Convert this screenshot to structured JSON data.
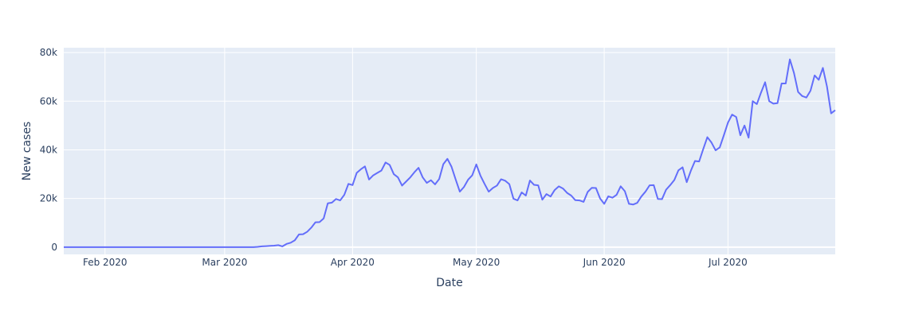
{
  "chart_data": {
    "type": "line",
    "title": "",
    "xlabel": "Date",
    "ylabel": "New cases",
    "x_range": [
      "2020-01-22",
      "2020-07-27"
    ],
    "ylim": [
      -3000,
      82000
    ],
    "y_ticks": [
      {
        "value": 0,
        "label": "0"
      },
      {
        "value": 20000,
        "label": "20k"
      },
      {
        "value": 40000,
        "label": "40k"
      },
      {
        "value": 60000,
        "label": "60k"
      },
      {
        "value": 80000,
        "label": "80k"
      }
    ],
    "x_ticks": [
      {
        "value": "2020-02-01",
        "label": "Feb 2020"
      },
      {
        "value": "2020-03-01",
        "label": "Mar 2020"
      },
      {
        "value": "2020-04-01",
        "label": "Apr 2020"
      },
      {
        "value": "2020-05-01",
        "label": "May 2020"
      },
      {
        "value": "2020-06-01",
        "label": "Jun 2020"
      },
      {
        "value": "2020-07-01",
        "label": "Jul 2020"
      }
    ],
    "grid": true,
    "colors": {
      "plot_bg": "#e5ecf6",
      "grid": "#ffffff",
      "line": "#636efa",
      "text": "#2a3f5f"
    },
    "series": [
      {
        "points": [
          [
            "2020-01-22",
            0
          ],
          [
            "2020-02-01",
            0
          ],
          [
            "2020-02-15",
            0
          ],
          [
            "2020-03-01",
            0
          ],
          [
            "2020-03-08",
            0
          ],
          [
            "2020-03-09",
            100
          ],
          [
            "2020-03-10",
            300
          ],
          [
            "2020-03-11",
            400
          ],
          [
            "2020-03-12",
            500
          ],
          [
            "2020-03-13",
            600
          ],
          [
            "2020-03-14",
            800
          ],
          [
            "2020-03-15",
            300
          ],
          [
            "2020-03-16",
            1300
          ],
          [
            "2020-03-17",
            1800
          ],
          [
            "2020-03-18",
            2800
          ],
          [
            "2020-03-19",
            5200
          ],
          [
            "2020-03-20",
            5300
          ],
          [
            "2020-03-21",
            6300
          ],
          [
            "2020-03-22",
            8000
          ],
          [
            "2020-03-23",
            10200
          ],
          [
            "2020-03-24",
            10300
          ],
          [
            "2020-03-25",
            11800
          ],
          [
            "2020-03-26",
            18000
          ],
          [
            "2020-03-27",
            18300
          ],
          [
            "2020-03-28",
            19800
          ],
          [
            "2020-03-29",
            19200
          ],
          [
            "2020-03-30",
            21500
          ],
          [
            "2020-03-31",
            26000
          ],
          [
            "2020-04-01",
            25500
          ],
          [
            "2020-04-02",
            30500
          ],
          [
            "2020-04-03",
            32000
          ],
          [
            "2020-04-04",
            33200
          ],
          [
            "2020-04-05",
            27800
          ],
          [
            "2020-04-06",
            29500
          ],
          [
            "2020-04-07",
            30500
          ],
          [
            "2020-04-08",
            31500
          ],
          [
            "2020-04-09",
            34800
          ],
          [
            "2020-04-10",
            33800
          ],
          [
            "2020-04-11",
            30000
          ],
          [
            "2020-04-12",
            28700
          ],
          [
            "2020-04-13",
            25300
          ],
          [
            "2020-04-14",
            27000
          ],
          [
            "2020-04-15",
            28700
          ],
          [
            "2020-04-16",
            30800
          ],
          [
            "2020-04-17",
            32600
          ],
          [
            "2020-04-18",
            28700
          ],
          [
            "2020-04-19",
            26400
          ],
          [
            "2020-04-20",
            27500
          ],
          [
            "2020-04-21",
            25800
          ],
          [
            "2020-04-22",
            28000
          ],
          [
            "2020-04-23",
            34100
          ],
          [
            "2020-04-24",
            36300
          ],
          [
            "2020-04-25",
            33000
          ],
          [
            "2020-04-26",
            27800
          ],
          [
            "2020-04-27",
            22800
          ],
          [
            "2020-04-28",
            24700
          ],
          [
            "2020-04-29",
            27700
          ],
          [
            "2020-04-30",
            29500
          ],
          [
            "2020-05-01",
            34000
          ],
          [
            "2020-05-02",
            29400
          ],
          [
            "2020-05-03",
            26000
          ],
          [
            "2020-05-04",
            22800
          ],
          [
            "2020-05-05",
            24300
          ],
          [
            "2020-05-06",
            25300
          ],
          [
            "2020-05-07",
            27900
          ],
          [
            "2020-05-08",
            27300
          ],
          [
            "2020-05-09",
            25900
          ],
          [
            "2020-05-10",
            19900
          ],
          [
            "2020-05-11",
            19200
          ],
          [
            "2020-05-12",
            22500
          ],
          [
            "2020-05-13",
            21200
          ],
          [
            "2020-05-14",
            27400
          ],
          [
            "2020-05-15",
            25600
          ],
          [
            "2020-05-16",
            25400
          ],
          [
            "2020-05-17",
            19500
          ],
          [
            "2020-05-18",
            21800
          ],
          [
            "2020-05-19",
            20800
          ],
          [
            "2020-05-20",
            23500
          ],
          [
            "2020-05-21",
            25000
          ],
          [
            "2020-05-22",
            24100
          ],
          [
            "2020-05-23",
            22300
          ],
          [
            "2020-05-24",
            21200
          ],
          [
            "2020-05-25",
            19300
          ],
          [
            "2020-05-26",
            19200
          ],
          [
            "2020-05-27",
            18600
          ],
          [
            "2020-05-28",
            22700
          ],
          [
            "2020-05-29",
            24400
          ],
          [
            "2020-05-30",
            24300
          ],
          [
            "2020-05-31",
            20000
          ],
          [
            "2020-06-01",
            17800
          ],
          [
            "2020-06-02",
            20900
          ],
          [
            "2020-06-03",
            20300
          ],
          [
            "2020-06-04",
            21500
          ],
          [
            "2020-06-05",
            25000
          ],
          [
            "2020-06-06",
            23000
          ],
          [
            "2020-06-07",
            17800
          ],
          [
            "2020-06-08",
            17500
          ],
          [
            "2020-06-09",
            18200
          ],
          [
            "2020-06-10",
            20800
          ],
          [
            "2020-06-11",
            22800
          ],
          [
            "2020-06-12",
            25400
          ],
          [
            "2020-06-13",
            25500
          ],
          [
            "2020-06-14",
            19800
          ],
          [
            "2020-06-15",
            19700
          ],
          [
            "2020-06-16",
            23600
          ],
          [
            "2020-06-17",
            25500
          ],
          [
            "2020-06-18",
            27600
          ],
          [
            "2020-06-19",
            31600
          ],
          [
            "2020-06-20",
            32800
          ],
          [
            "2020-06-21",
            26700
          ],
          [
            "2020-06-22",
            31400
          ],
          [
            "2020-06-23",
            35400
          ],
          [
            "2020-06-24",
            35200
          ],
          [
            "2020-06-25",
            40300
          ],
          [
            "2020-06-26",
            45200
          ],
          [
            "2020-06-27",
            43000
          ],
          [
            "2020-06-28",
            39800
          ],
          [
            "2020-06-29",
            41000
          ],
          [
            "2020-06-30",
            46000
          ],
          [
            "2020-07-01",
            51200
          ],
          [
            "2020-07-02",
            54500
          ],
          [
            "2020-07-03",
            53500
          ],
          [
            "2020-07-04",
            46000
          ],
          [
            "2020-07-05",
            50000
          ],
          [
            "2020-07-06",
            45000
          ],
          [
            "2020-07-07",
            60000
          ],
          [
            "2020-07-08",
            58800
          ],
          [
            "2020-07-09",
            63500
          ],
          [
            "2020-07-10",
            67800
          ],
          [
            "2020-07-11",
            60000
          ],
          [
            "2020-07-12",
            59000
          ],
          [
            "2020-07-13",
            59200
          ],
          [
            "2020-07-14",
            67300
          ],
          [
            "2020-07-15",
            67300
          ],
          [
            "2020-07-16",
            77200
          ],
          [
            "2020-07-17",
            71600
          ],
          [
            "2020-07-18",
            63800
          ],
          [
            "2020-07-19",
            62100
          ],
          [
            "2020-07-20",
            61500
          ],
          [
            "2020-07-21",
            64300
          ],
          [
            "2020-07-22",
            70600
          ],
          [
            "2020-07-23",
            68800
          ],
          [
            "2020-07-24",
            73700
          ],
          [
            "2020-07-25",
            66000
          ],
          [
            "2020-07-26",
            55000
          ],
          [
            "2020-07-27",
            56300
          ]
        ]
      }
    ]
  }
}
